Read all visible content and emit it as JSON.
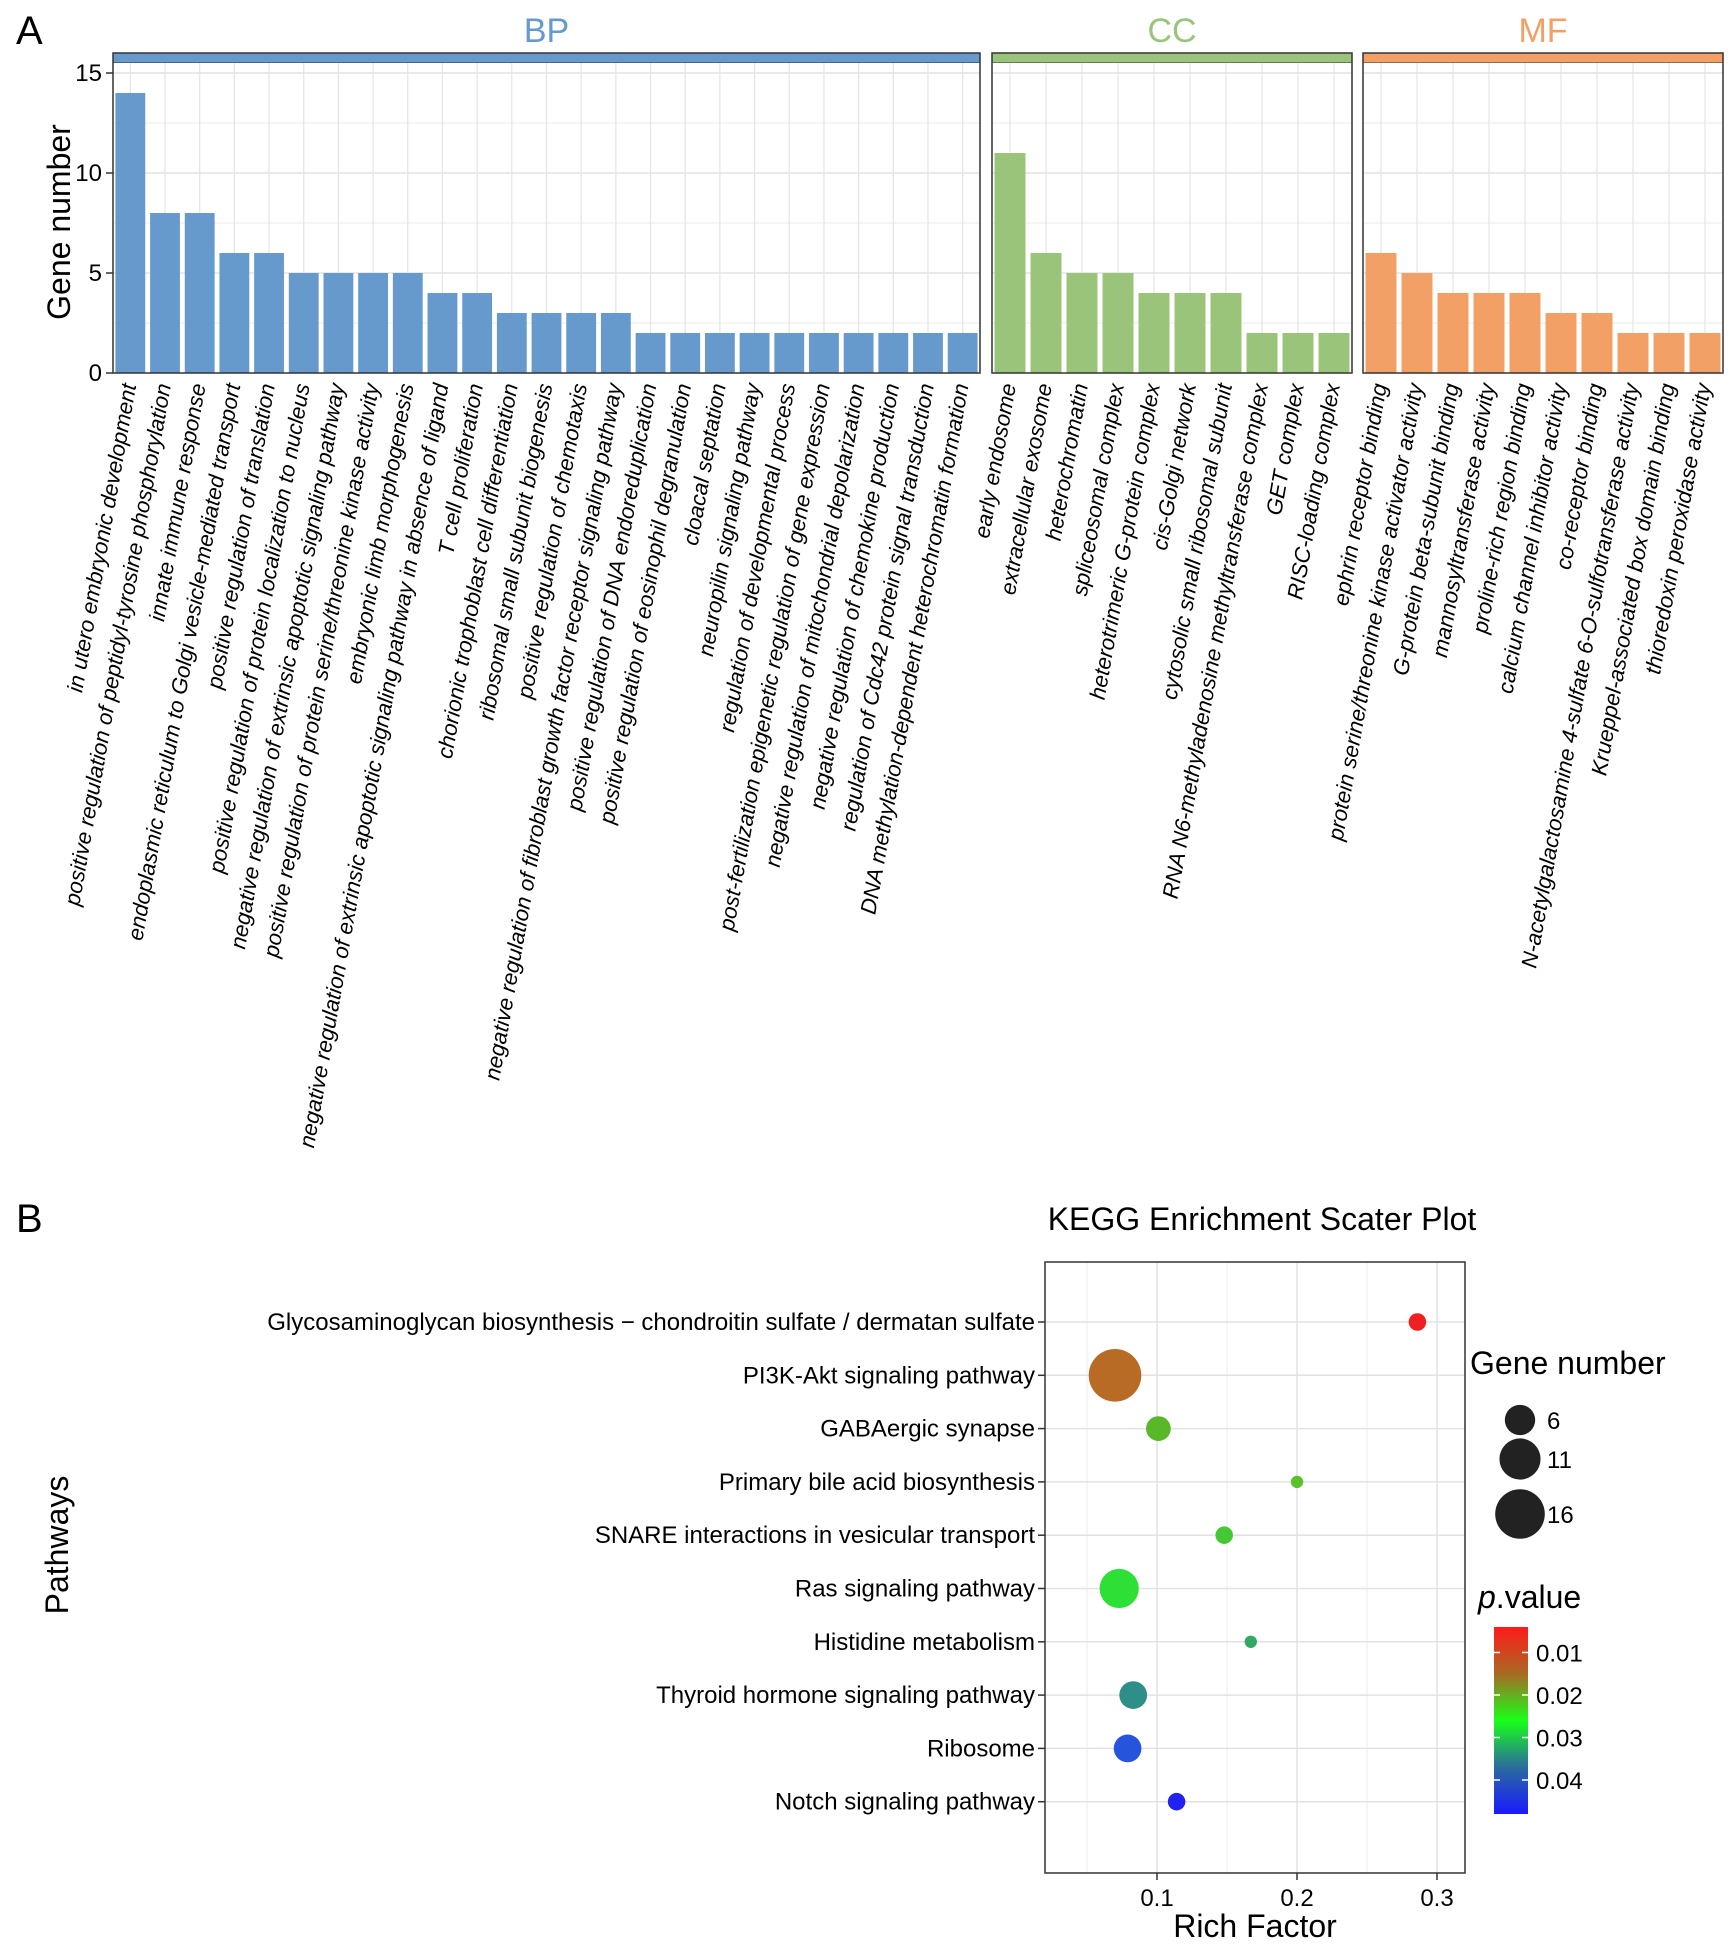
{
  "figure": {
    "panel_a_letter": "A",
    "panel_b_letter": "B"
  },
  "chart_data": [
    {
      "type": "bar",
      "title": "",
      "xlabel": "",
      "ylabel": "Gene number",
      "ylim": [
        0,
        15.5
      ],
      "yticks": [
        0,
        5,
        10,
        15
      ],
      "grid": true,
      "facets": [
        {
          "name": "BP",
          "color": "#6699CC",
          "categories": [
            "in utero embryonic development",
            "positive regulation of peptidyl-tyrosine phosphorylation",
            "innate immune response",
            "endoplasmic reticulum to Golgi vesicle-mediated transport",
            "positive regulation of translation",
            "positive regulation of protein localization to nucleus",
            "negative regulation of extrinsic apoptotic signaling pathway",
            "positive regulation of protein serine/threonine kinase activity",
            "embryonic limb morphogenesis",
            "negative regulation of extrinsic apoptotic signaling pathway in absence of ligand",
            "T cell proliferation",
            "chorionic trophoblast cell differentiation",
            "ribosomal small subunit biogenesis",
            "positive regulation of chemotaxis",
            "negative regulation of fibroblast growth factor receptor signaling pathway",
            "positive regulation of DNA endoreduplication",
            "positive regulation of eosinophil degranulation",
            "cloacal septation",
            "neuropilin signaling pathway",
            "regulation of developmental process",
            "post-fertilization epigenetic regulation of gene expression",
            "negative regulation of mitochondrial depolarization",
            "negative regulation of chemokine production",
            "regulation of Cdc42 protein signal transduction",
            "DNA methylation-dependent heterochromatin formation"
          ],
          "values": [
            14,
            8,
            8,
            6,
            6,
            5,
            5,
            5,
            5,
            4,
            4,
            3,
            3,
            3,
            3,
            2,
            2,
            2,
            2,
            2,
            2,
            2,
            2,
            2,
            2
          ]
        },
        {
          "name": "CC",
          "color": "#99C47A",
          "categories": [
            "early endosome",
            "extracellular exosome",
            "heterochromatin",
            "spliceosomal complex",
            "heterotrimeric G-protein complex",
            "cis-Golgi network",
            "cytosolic small ribosomal subunit",
            "RNA N6-methyladenosine methyltransferase complex",
            "GET complex",
            "RISC-loading complex"
          ],
          "values": [
            11,
            6,
            5,
            5,
            4,
            4,
            4,
            2,
            2,
            2
          ]
        },
        {
          "name": "MF",
          "color": "#F2A066",
          "categories": [
            "ephrin receptor binding",
            "protein serine/threonine kinase activator activity",
            "G-protein beta-subunit binding",
            "mannosyltransferase activity",
            "proline-rich region binding",
            "calcium channel inhibitor activity",
            "co-receptor binding",
            "N-acetylgalactosamine 4-sulfate 6-O-sulfotransferase activity",
            "Krueppel-associated box domain binding",
            "thioredoxin peroxidase activity"
          ],
          "values": [
            6,
            5,
            4,
            4,
            4,
            3,
            3,
            2,
            2,
            2
          ]
        }
      ]
    },
    {
      "type": "scatter",
      "title": "KEGG Enrichment Scater Plot",
      "xlabel": "Rich Factor",
      "ylabel": "Pathways",
      "xlim": [
        0.02,
        0.32
      ],
      "xticks": [
        0.1,
        0.2,
        0.3
      ],
      "grid": true,
      "points": [
        {
          "pathway": "Glycosaminoglycan biosynthesis − chondroitin sulfate / dermatan sulfate",
          "rich_factor": 0.286,
          "gene_number": 2,
          "p_value": 0.004,
          "color": "#F02020"
        },
        {
          "pathway": "PI3K-Akt signaling pathway",
          "rich_factor": 0.07,
          "gene_number": 18,
          "p_value": 0.012,
          "color": "#B86B24"
        },
        {
          "pathway": "GABAergic synapse",
          "rich_factor": 0.101,
          "gene_number": 4,
          "p_value": 0.021,
          "color": "#58B82A"
        },
        {
          "pathway": "Primary bile acid biosynthesis",
          "rich_factor": 0.2,
          "gene_number": 1,
          "p_value": 0.022,
          "color": "#5CC22C"
        },
        {
          "pathway": "SNARE interactions in vesicular transport",
          "rich_factor": 0.148,
          "gene_number": 2,
          "p_value": 0.025,
          "color": "#44C833"
        },
        {
          "pathway": "Ras signaling pathway",
          "rich_factor": 0.073,
          "gene_number": 10,
          "p_value": 0.027,
          "color": "#2EE036"
        },
        {
          "pathway": "Histidine metabolism",
          "rich_factor": 0.167,
          "gene_number": 1,
          "p_value": 0.033,
          "color": "#33A866"
        },
        {
          "pathway": "Thyroid hormone signaling pathway",
          "rich_factor": 0.083,
          "gene_number": 5,
          "p_value": 0.036,
          "color": "#2E8E88"
        },
        {
          "pathway": "Ribosome",
          "rich_factor": 0.079,
          "gene_number": 5,
          "p_value": 0.044,
          "color": "#2654DC"
        },
        {
          "pathway": "Notch signaling pathway",
          "rich_factor": 0.114,
          "gene_number": 2,
          "p_value": 0.047,
          "color": "#2121F0"
        }
      ],
      "legend": {
        "size_title": "Gene number",
        "size_entries": [
          6,
          11,
          16
        ],
        "color_title_italic": "p",
        "color_title_rest": ".value",
        "color_ticks": [
          "0.01",
          "0.02",
          "0.03",
          "0.04"
        ],
        "color_range": [
          0.004,
          0.048
        ],
        "gradient_colors": [
          "#FF1A1A",
          "#A86A24",
          "#19FF19",
          "#2A6C9E",
          "#1A1AFF"
        ]
      }
    }
  ]
}
